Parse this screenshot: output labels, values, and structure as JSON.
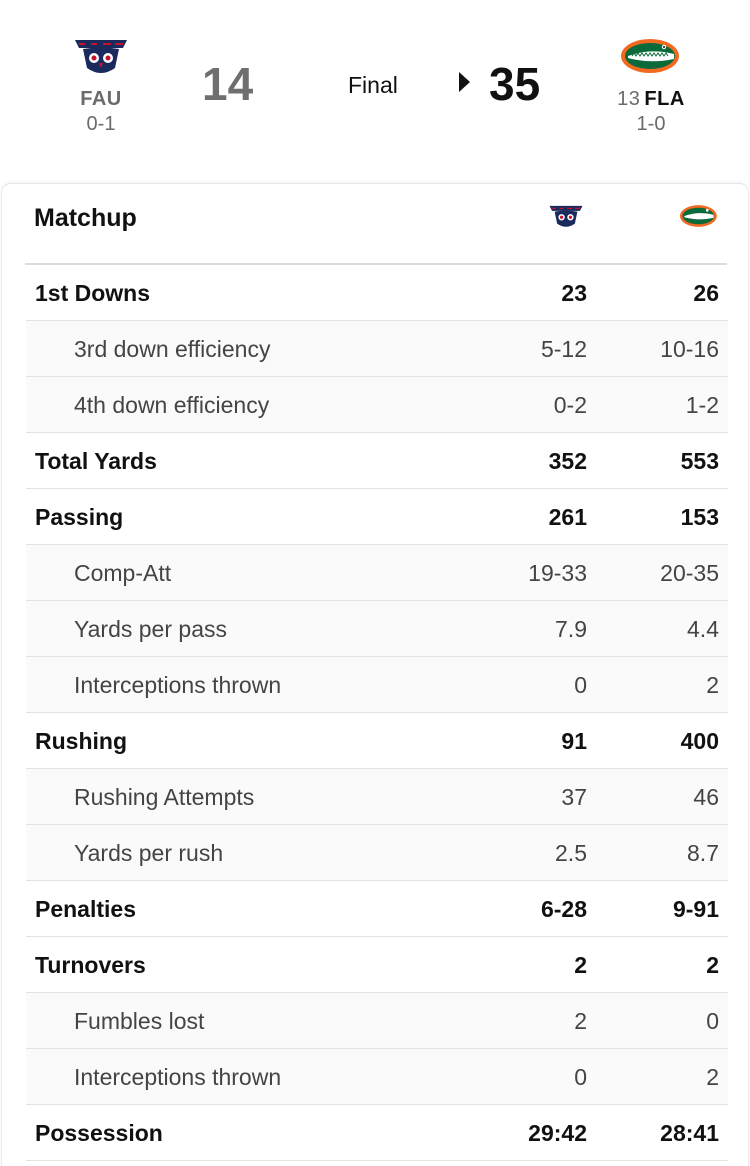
{
  "game": {
    "status": "Final",
    "away": {
      "abbr": "FAU",
      "record": "0-1",
      "score": "14",
      "logo_icon": "fau-owls-logo-icon"
    },
    "home": {
      "rank": "13",
      "abbr": "FLA",
      "record": "1-0",
      "score": "35",
      "logo_icon": "florida-gators-logo-icon"
    },
    "winner_indicator_icon": "caret-right-icon"
  },
  "matchup": {
    "title": "Matchup",
    "rows": [
      {
        "label": "1st Downs",
        "away": "23",
        "home": "26",
        "sub": false
      },
      {
        "label": "3rd down efficiency",
        "away": "5-12",
        "home": "10-16",
        "sub": true
      },
      {
        "label": "4th down efficiency",
        "away": "0-2",
        "home": "1-2",
        "sub": true
      },
      {
        "label": "Total Yards",
        "away": "352",
        "home": "553",
        "sub": false
      },
      {
        "label": "Passing",
        "away": "261",
        "home": "153",
        "sub": false
      },
      {
        "label": "Comp-Att",
        "away": "19-33",
        "home": "20-35",
        "sub": true
      },
      {
        "label": "Yards per pass",
        "away": "7.9",
        "home": "4.4",
        "sub": true
      },
      {
        "label": "Interceptions thrown",
        "away": "0",
        "home": "2",
        "sub": true
      },
      {
        "label": "Rushing",
        "away": "91",
        "home": "400",
        "sub": false
      },
      {
        "label": "Rushing Attempts",
        "away": "37",
        "home": "46",
        "sub": true
      },
      {
        "label": "Yards per rush",
        "away": "2.5",
        "home": "8.7",
        "sub": true
      },
      {
        "label": "Penalties",
        "away": "6-28",
        "home": "9-91",
        "sub": false
      },
      {
        "label": "Turnovers",
        "away": "2",
        "home": "2",
        "sub": false
      },
      {
        "label": "Fumbles lost",
        "away": "2",
        "home": "0",
        "sub": true
      },
      {
        "label": "Interceptions thrown",
        "away": "0",
        "home": "2",
        "sub": true
      },
      {
        "label": "Possession",
        "away": "29:42",
        "home": "28:41",
        "sub": false
      }
    ]
  },
  "colors": {
    "fau_navy": "#1b2a5c",
    "fau_red": "#c8102e",
    "uf_orange": "#f26a21",
    "uf_green": "#0b6a3a"
  }
}
